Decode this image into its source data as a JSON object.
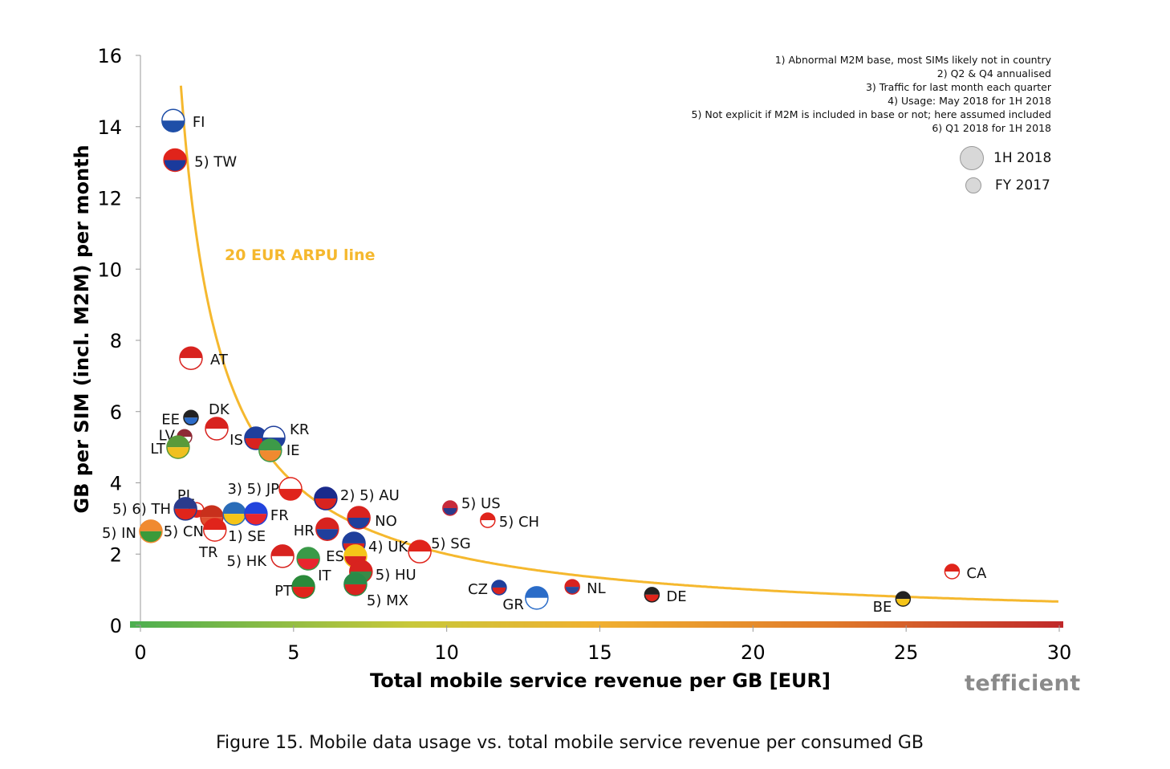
{
  "chart_data": {
    "type": "scatter",
    "title": "",
    "xlabel": "Total mobile service revenue per GB [EUR]",
    "ylabel": "GB per SIM (incl. M2M) per month",
    "xlim": [
      0,
      30
    ],
    "ylim": [
      0,
      16
    ],
    "xticks": [
      "0",
      "5",
      "10",
      "15",
      "20",
      "25",
      "30"
    ],
    "yticks": [
      "0",
      "2",
      "4",
      "6",
      "8",
      "10",
      "12",
      "14",
      "16"
    ],
    "grid": false,
    "legend_placement": "top-right",
    "legend": [
      {
        "label": "1H 2018",
        "size": "large"
      },
      {
        "label": "FY 2017",
        "size": "small"
      }
    ],
    "reference_curve": {
      "label": "20 EUR ARPU line",
      "formula": "y = 20 / x",
      "color": "#f5b82e"
    },
    "points": [
      {
        "label": "FI",
        "x": 1.07,
        "y": 14.17,
        "period": "1H 2018",
        "colors": [
          "#ffffff",
          "#1f4fa8"
        ]
      },
      {
        "label": "5) TW",
        "x": 1.13,
        "y": 13.06,
        "period": "1H 2018",
        "colors": [
          "#e0241b",
          "#1a3a9c"
        ]
      },
      {
        "label": "AT",
        "x": 1.65,
        "y": 7.5,
        "period": "1H 2018",
        "colors": [
          "#d8231f",
          "#ffffff"
        ]
      },
      {
        "label": "EE",
        "x": 1.65,
        "y": 5.83,
        "period": "FY 2017",
        "colors": [
          "#222222",
          "#2b6bc8"
        ]
      },
      {
        "label": "DK",
        "x": 2.49,
        "y": 5.52,
        "period": "1H 2018",
        "colors": [
          "#d8231f",
          "#ffffff"
        ]
      },
      {
        "label": "LV",
        "x": 1.44,
        "y": 5.29,
        "period": "FY 2017",
        "colors": [
          "#8e2a35",
          "#ffffff"
        ]
      },
      {
        "label": "LT",
        "x": 1.23,
        "y": 5.0,
        "period": "1H 2018",
        "colors": [
          "#5a9a3a",
          "#f0c020"
        ]
      },
      {
        "label": "IS",
        "x": 3.77,
        "y": 5.25,
        "period": "1H 2018",
        "colors": [
          "#1f3f9c",
          "#d8231f"
        ]
      },
      {
        "label": "KR",
        "x": 4.35,
        "y": 5.27,
        "period": "1H 2018",
        "colors": [
          "#ffffff",
          "#1f3f9c"
        ]
      },
      {
        "label": "IE",
        "x": 4.24,
        "y": 4.91,
        "period": "1H 2018",
        "colors": [
          "#3d9a48",
          "#f08a30"
        ]
      },
      {
        "label": "3) 5) JP",
        "x": 4.9,
        "y": 3.83,
        "period": "1H 2018",
        "colors": [
          "#ffffff",
          "#e0241b"
        ]
      },
      {
        "label": "2) 5) AU",
        "x": 6.05,
        "y": 3.56,
        "period": "1H 2018",
        "colors": [
          "#1a2a8c",
          "#d8231f"
        ]
      },
      {
        "label": "PL",
        "x": 1.83,
        "y": 3.24,
        "period": "FY 2017",
        "colors": [
          "#ffffff",
          "#e0241b"
        ]
      },
      {
        "label": "5) 6) TH",
        "x": 1.47,
        "y": 3.27,
        "period": "1H 2018",
        "colors": [
          "#2a3b8c",
          "#e0241b"
        ]
      },
      {
        "label": "5) CN",
        "x": 2.33,
        "y": 3.04,
        "period": "1H 2018",
        "colors": [
          "#c8301c",
          "#e05030"
        ]
      },
      {
        "label": "1) SE",
        "x": 3.07,
        "y": 3.13,
        "period": "1H 2018",
        "colors": [
          "#2a6cb8",
          "#f5c518"
        ]
      },
      {
        "label": "FR",
        "x": 3.77,
        "y": 3.13,
        "period": "1H 2018",
        "colors": [
          "#2244dd",
          "#e8262e"
        ]
      },
      {
        "label": "NO",
        "x": 7.13,
        "y": 3.02,
        "period": "1H 2018",
        "colors": [
          "#d8231f",
          "#1f3f9c"
        ]
      },
      {
        "label": "5) IN",
        "x": 0.34,
        "y": 2.64,
        "period": "1H 2018",
        "colors": [
          "#f08a30",
          "#3a9a3a"
        ]
      },
      {
        "label": "TR",
        "x": 2.43,
        "y": 2.68,
        "period": "1H 2018",
        "colors": [
          "#e0241b",
          "#ffffff"
        ]
      },
      {
        "label": "HR",
        "x": 6.1,
        "y": 2.7,
        "period": "1H 2018",
        "colors": [
          "#d8231f",
          "#1f3f9c"
        ]
      },
      {
        "label": "4) UK",
        "x": 6.97,
        "y": 2.3,
        "period": "1H 2018",
        "colors": [
          "#1f3f9c",
          "#d8231f"
        ]
      },
      {
        "label": "5) SG",
        "x": 9.12,
        "y": 2.07,
        "period": "1H 2018",
        "colors": [
          "#e0241b",
          "#ffffff"
        ]
      },
      {
        "label": "5) US",
        "x": 10.11,
        "y": 3.29,
        "period": "FY 2017",
        "colors": [
          "#c82a3a",
          "#2a3a8c"
        ]
      },
      {
        "label": "5) CH",
        "x": 11.34,
        "y": 2.95,
        "period": "FY 2017",
        "colors": [
          "#e0241b",
          "#ffffff"
        ]
      },
      {
        "label": "5) HK",
        "x": 4.64,
        "y": 1.94,
        "period": "1H 2018",
        "colors": [
          "#d8231f",
          "#ffffff"
        ]
      },
      {
        "label": "IT",
        "x": 5.48,
        "y": 1.87,
        "period": "1H 2018",
        "colors": [
          "#3a9a48",
          "#e8262e"
        ]
      },
      {
        "label": "ES",
        "x": 7.02,
        "y": 1.94,
        "period": "1H 2018",
        "colors": [
          "#f5c518",
          "#d8231f"
        ]
      },
      {
        "label": "5) HU",
        "x": 7.2,
        "y": 1.51,
        "period": "1H 2018",
        "colors": [
          "#d8231f",
          "#3a8a48"
        ]
      },
      {
        "label": "PT",
        "x": 5.32,
        "y": 1.08,
        "period": "1H 2018",
        "colors": [
          "#2a8a3a",
          "#e0241b"
        ]
      },
      {
        "label": "5) MX",
        "x": 7.02,
        "y": 1.15,
        "period": "1H 2018",
        "colors": [
          "#2a8a48",
          "#d8231f"
        ]
      },
      {
        "label": "CZ",
        "x": 11.71,
        "y": 1.06,
        "period": "FY 2017",
        "colors": [
          "#1f3f9c",
          "#d8231f"
        ]
      },
      {
        "label": "GR",
        "x": 12.94,
        "y": 0.77,
        "period": "1H 2018",
        "colors": [
          "#2a6cc8",
          "#ffffff"
        ]
      },
      {
        "label": "NL",
        "x": 14.1,
        "y": 1.08,
        "period": "FY 2017",
        "colors": [
          "#d8231f",
          "#2a4a9c"
        ]
      },
      {
        "label": "DE",
        "x": 16.7,
        "y": 0.86,
        "period": "FY 2017",
        "colors": [
          "#222222",
          "#e0241b"
        ]
      },
      {
        "label": "BE",
        "x": 24.9,
        "y": 0.74,
        "period": "FY 2017",
        "colors": [
          "#222222",
          "#f5c518"
        ]
      },
      {
        "label": "CA",
        "x": 26.5,
        "y": 1.51,
        "period": "FY 2017",
        "colors": [
          "#e0241b",
          "#ffffff"
        ]
      }
    ]
  },
  "notes": [
    "1) Abnormal M2M base, most SIMs likely not in country",
    "2) Q2 & Q4 annualised",
    "3) Traffic for last month each quarter",
    "4) Usage: May 2018 for 1H 2018",
    "5) Not explicit if M2M is included in base or not; here  assumed included",
    "6) Q1 2018 for 1H 2018"
  ],
  "caption": "Figure 15. Mobile data usage vs. total mobile service revenue per consumed GB",
  "logo": "tefficient"
}
